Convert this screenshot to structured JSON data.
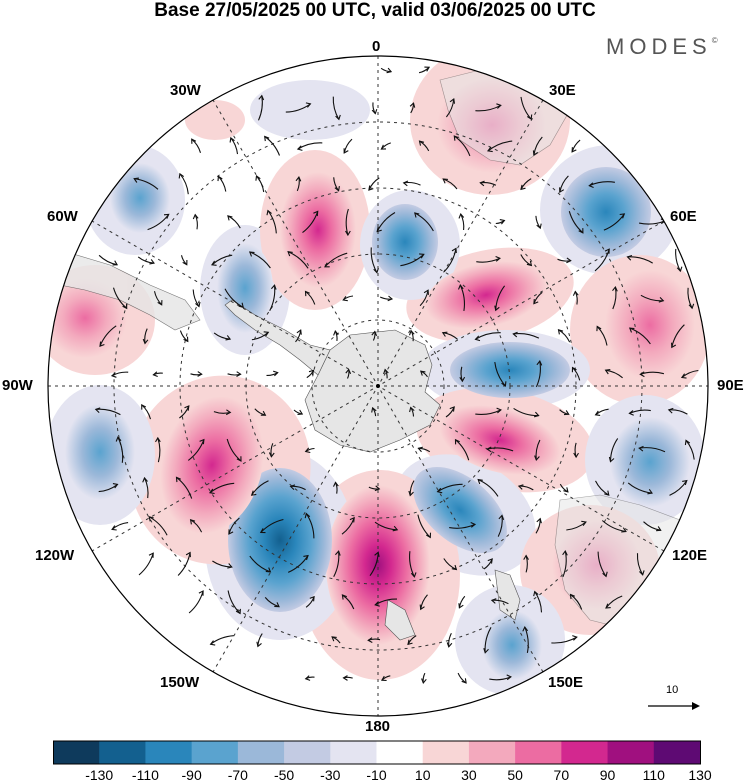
{
  "title": "Base 27/05/2025 00 UTC, valid 03/06/2025 00 UTC",
  "brand": "MODES",
  "brand_mark": "©",
  "longitude_labels": {
    "top": "0",
    "top_right": "30E",
    "upper_right": "60E",
    "right": "90E",
    "lower_right": "120E",
    "bottom_right": "150E",
    "bottom": "180",
    "bottom_left": "150W",
    "lower_left": "120W",
    "left": "90W",
    "upper_left": "60W",
    "top_left": "30W"
  },
  "reference_vector": {
    "label": "10"
  },
  "colorbar": {
    "tick_labels": [
      "-130",
      "-110",
      "-90",
      "-70",
      "-50",
      "-30",
      "-10",
      "10",
      "30",
      "50",
      "70",
      "90",
      "110",
      "130"
    ],
    "colors": [
      "#0e3a5c",
      "#13608f",
      "#2a86bb",
      "#5aa3cf",
      "#9bb8d9",
      "#c3cbe3",
      "#e4e4f1",
      "#ffffff",
      "#f8d6d6",
      "#f3a9bd",
      "#ec6ca2",
      "#d3288f",
      "#a0107f",
      "#5e0a73"
    ]
  },
  "map_data": {
    "projection": "south polar stereographic",
    "center_latitude": -90,
    "colors": {
      "land": "#e6e6e6",
      "graticule": "#333333",
      "vectors": "#111111"
    }
  }
}
